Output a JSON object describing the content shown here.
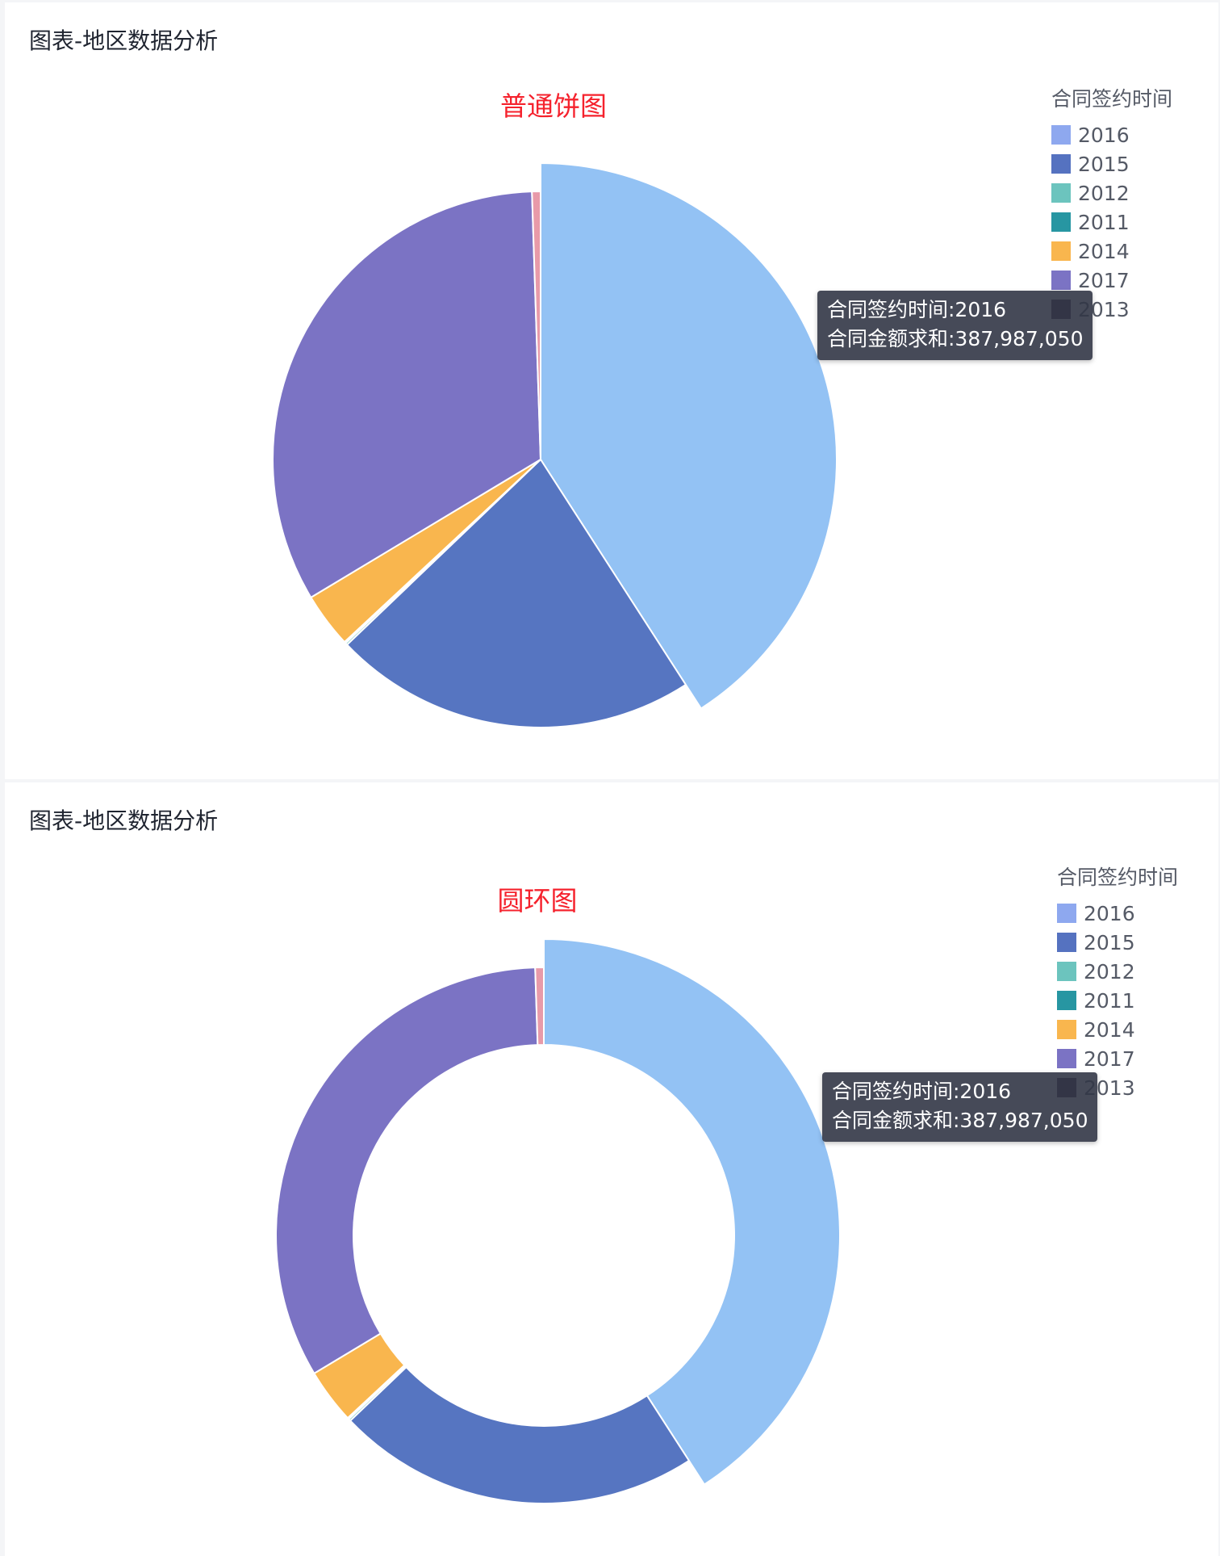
{
  "panels": [
    {
      "id": "pie",
      "header": "图表-地区数据分析",
      "tooltip": {
        "line1": "合同签约时间:2016",
        "line2": "合同金额求和:387,987,050"
      }
    },
    {
      "id": "donut",
      "header": "图表-地区数据分析",
      "tooltip": {
        "line1": "合同签约时间:2016",
        "line2": "合同金额求和:387,987,050"
      }
    }
  ],
  "legend": {
    "title": "合同签约时间",
    "items": [
      {
        "label": "2016",
        "color": "#8ea8ef"
      },
      {
        "label": "2015",
        "color": "#5572c0"
      },
      {
        "label": "2012",
        "color": "#6cc4be"
      },
      {
        "label": "2011",
        "color": "#2796a2"
      },
      {
        "label": "2014",
        "color": "#f9b64e"
      },
      {
        "label": "2017",
        "color": "#7b73c4"
      },
      {
        "label": "2013",
        "color": "#3f3148"
      }
    ]
  },
  "chart_data": [
    {
      "type": "pie",
      "title": "普通饼图",
      "highlighted": "2016",
      "slices": [
        {
          "label": "2016",
          "value": 387987050,
          "color": "#93c2f4"
        },
        {
          "label": "2015",
          "value": 208500000,
          "color": "#5675c1"
        },
        {
          "label": "2012",
          "value": 1200000,
          "color": "#6cc4be"
        },
        {
          "label": "2011",
          "value": 900000,
          "color": "#2796a2"
        },
        {
          "label": "2014",
          "value": 31500000,
          "color": "#f9b64e"
        },
        {
          "label": "2017",
          "value": 314000000,
          "color": "#7b73c4"
        },
        {
          "label": "2013",
          "value": 4900000,
          "color": "#e89aa9"
        }
      ]
    },
    {
      "type": "pie",
      "variant": "donut",
      "title": "圆环图",
      "highlighted": "2016",
      "slices": [
        {
          "label": "2016",
          "value": 387987050,
          "color": "#93c2f4"
        },
        {
          "label": "2015",
          "value": 208500000,
          "color": "#5675c1"
        },
        {
          "label": "2012",
          "value": 1200000,
          "color": "#6cc4be"
        },
        {
          "label": "2011",
          "value": 900000,
          "color": "#2796a2"
        },
        {
          "label": "2014",
          "value": 31500000,
          "color": "#f9b64e"
        },
        {
          "label": "2017",
          "value": 314000000,
          "color": "#7b73c4"
        },
        {
          "label": "2013",
          "value": 4900000,
          "color": "#e89aa9"
        }
      ]
    }
  ]
}
